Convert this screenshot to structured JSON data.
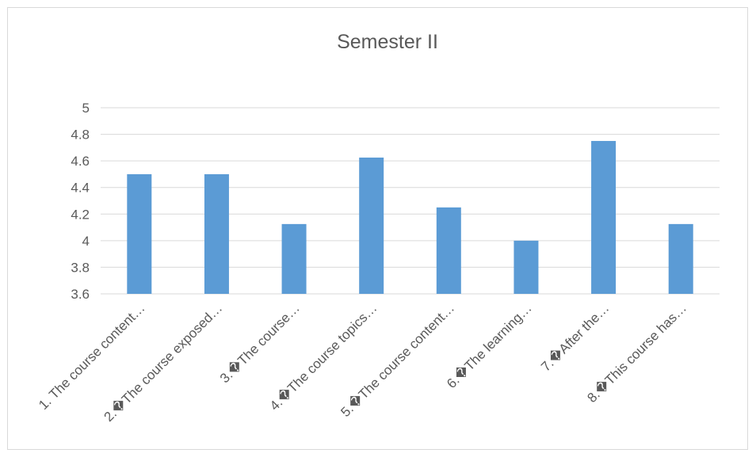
{
  "chart_data": {
    "type": "bar",
    "title": "Semester II",
    "xlabel": "",
    "ylabel": "",
    "categories": [
      "1. The course content…",
      "2.�The course exposed…",
      "3.�The course…",
      "4.�The course topics…",
      "5.�The course content…",
      "6.�The learning…",
      "7.�After the…",
      "8.�This course has…"
    ],
    "values": [
      4.5,
      4.5,
      4.125,
      4.625,
      4.25,
      4.0,
      4.75,
      4.125
    ],
    "ylim": [
      3.6,
      5
    ],
    "yticks": [
      "3.6",
      "3.8",
      "4",
      "4.2",
      "4.4",
      "4.6",
      "4.8",
      "5"
    ],
    "grid": true,
    "legend": "none",
    "bar_color": "#5b9bd5"
  }
}
